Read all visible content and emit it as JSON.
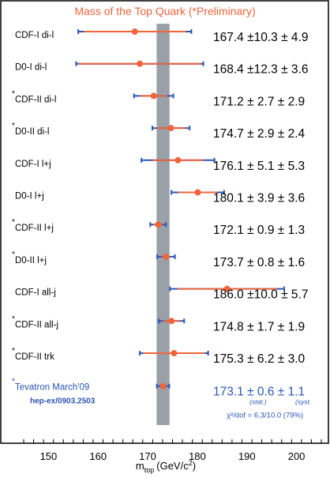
{
  "chart_data": {
    "type": "scatter",
    "title": "Mass of the Top Quark (*Preliminary)",
    "xlabel_main": "m",
    "xlabel_sub": "top",
    "xlabel_unit": "(GeV/c",
    "xlabel_sup": "2",
    "xlabel_end": ")",
    "xlim": [
      145,
      205
    ],
    "xticks": [
      150,
      160,
      170,
      180,
      190,
      200
    ],
    "band": {
      "center": 173.1,
      "halfwidth": 1.3
    },
    "measurements": [
      {
        "star": false,
        "label": "CDF-I di-l",
        "value": 167.4,
        "stat": 10.3,
        "syst": 4.9,
        "text": "167.4 ±10.3 ± 4.9"
      },
      {
        "star": false,
        "label": "D0-I di-l",
        "value": 168.4,
        "stat": 12.3,
        "syst": 3.6,
        "text": "168.4 ±12.3 ± 3.6"
      },
      {
        "star": true,
        "label": "CDF-II di-l",
        "value": 171.2,
        "stat": 2.7,
        "syst": 2.9,
        "text": "171.2 ± 2.7 ± 2.9"
      },
      {
        "star": true,
        "label": "D0-II di-l",
        "value": 174.7,
        "stat": 2.9,
        "syst": 2.4,
        "text": "174.7 ± 2.9 ± 2.4"
      },
      {
        "star": false,
        "label": "CDF-I l+j",
        "value": 176.1,
        "stat": 5.1,
        "syst": 5.3,
        "text": "176.1 ± 5.1 ± 5.3"
      },
      {
        "star": false,
        "label": "D0-I l+j",
        "value": 180.1,
        "stat": 3.9,
        "syst": 3.6,
        "text": "180.1 ± 3.9 ± 3.6"
      },
      {
        "star": true,
        "label": "CDF-II l+j",
        "value": 172.1,
        "stat": 0.9,
        "syst": 1.3,
        "text": "172.1 ± 0.9 ± 1.3"
      },
      {
        "star": true,
        "label": "D0-II l+j",
        "value": 173.7,
        "stat": 0.8,
        "syst": 1.6,
        "text": "173.7 ± 0.8 ± 1.6"
      },
      {
        "star": false,
        "label": "CDF-I all-j",
        "value": 186.0,
        "stat": 10.0,
        "syst": 5.7,
        "text": "186.0 ±10.0 ± 5.7"
      },
      {
        "star": true,
        "label": "CDF-II all-j",
        "value": 174.8,
        "stat": 1.7,
        "syst": 1.9,
        "text": "174.8 ± 1.7 ± 1.9"
      },
      {
        "star": true,
        "label": "CDF-II trk",
        "value": 175.3,
        "stat": 6.2,
        "syst": 3.0,
        "text": "175.3 ± 6.2 ± 3.0"
      }
    ],
    "combined": {
      "star": true,
      "label": "Tevatron March'09",
      "reference": "hep-ex/0903.2503",
      "value": 173.1,
      "stat": 0.6,
      "syst": 1.1,
      "value_text": "173.1 ± 0.6 ± 1.1",
      "stat_label": "(stat.)",
      "syst_label": "(syst.",
      "chi2_text": "χ²/dof = 6.3/10.0 (79%)"
    },
    "colors": {
      "title": "#f0643c",
      "stat_bar": "#f0643c",
      "marker": "#f0643c",
      "syst_bar": "#2a55b8",
      "band": "#9aa0a8",
      "combined_text": "#2a55b8",
      "label_text": "#000000"
    }
  }
}
